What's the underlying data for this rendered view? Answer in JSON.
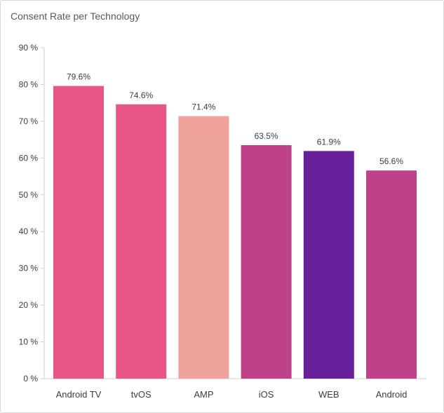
{
  "chart_data": {
    "type": "bar",
    "title": "Consent Rate per Technology",
    "xlabel": "",
    "ylabel": "",
    "categories": [
      "Android TV",
      "tvOS",
      "AMP",
      "iOS",
      "WEB",
      "Android"
    ],
    "values": [
      79.6,
      74.6,
      71.4,
      63.5,
      61.9,
      56.6
    ],
    "value_labels": [
      "79.6%",
      "74.6%",
      "71.4%",
      "63.5%",
      "61.9%",
      "56.6%"
    ],
    "colors": [
      "#e85686",
      "#e85686",
      "#f0a39d",
      "#bf4188",
      "#68209a",
      "#bf4188"
    ],
    "ylim": [
      0,
      90
    ],
    "yticks": [
      0,
      10,
      20,
      30,
      40,
      50,
      60,
      70,
      80,
      90
    ],
    "ytick_labels": [
      "0 %",
      "10 %",
      "20 %",
      "30 %",
      "40 %",
      "50 %",
      "60 %",
      "70 %",
      "80 %",
      "90 %"
    ],
    "grid": false,
    "legend": "none"
  }
}
